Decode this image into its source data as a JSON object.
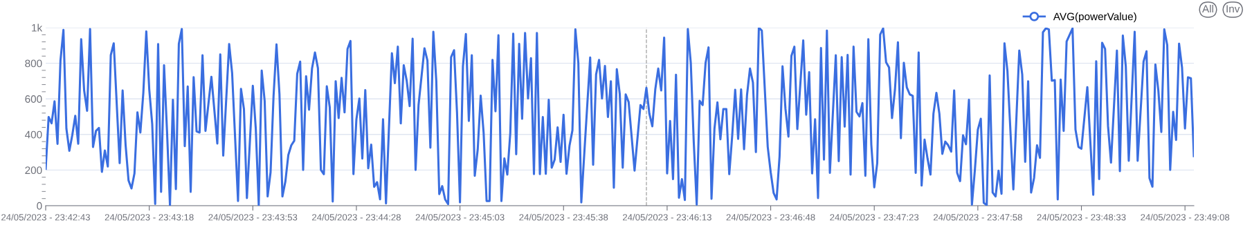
{
  "chart_data": {
    "type": "line",
    "x": [
      "2023-05-24T23:42:43",
      "2023-05-24T23:42:44",
      "2023-05-24T23:42:45",
      "2023-05-24T23:42:46",
      "2023-05-24T23:42:47",
      "2023-05-24T23:42:48",
      "2023-05-24T23:42:49",
      "2023-05-24T23:42:50",
      "2023-05-24T23:42:51",
      "2023-05-24T23:42:52",
      "2023-05-24T23:42:53",
      "2023-05-24T23:42:54",
      "2023-05-24T23:42:55",
      "2023-05-24T23:42:56",
      "2023-05-24T23:42:57",
      "2023-05-24T23:42:58",
      "2023-05-24T23:42:59",
      "2023-05-24T23:43:00",
      "2023-05-24T23:43:01",
      "2023-05-24T23:43:02",
      "2023-05-24T23:43:03",
      "2023-05-24T23:43:04",
      "2023-05-24T23:43:05",
      "2023-05-24T23:43:06",
      "2023-05-24T23:43:08",
      "2023-05-24T23:43:09",
      "2023-05-24T23:43:10",
      "2023-05-24T23:43:11",
      "2023-05-24T23:43:12",
      "2023-05-24T23:43:13",
      "2023-05-24T23:43:14",
      "2023-05-24T23:43:15",
      "2023-05-24T23:43:16",
      "2023-05-24T23:43:17",
      "2023-05-24T23:43:18",
      "2023-05-24T23:43:19",
      "2023-05-24T23:43:20",
      "2023-05-24T23:43:21",
      "2023-05-24T23:43:22",
      "2023-05-24T23:43:23",
      "2023-05-24T23:43:24",
      "2023-05-24T23:43:25",
      "2023-05-24T23:43:26",
      "2023-05-24T23:43:27",
      "2023-05-24T23:43:28",
      "2023-05-24T23:43:29",
      "2023-05-24T23:43:30",
      "2023-05-24T23:43:31",
      "2023-05-24T23:43:32",
      "2023-05-24T23:43:33",
      "2023-05-24T23:43:34",
      "2023-05-24T23:43:35",
      "2023-05-24T23:43:36",
      "2023-05-24T23:43:37",
      "2023-05-24T23:43:39",
      "2023-05-24T23:43:41",
      "2023-05-24T23:43:42",
      "2023-05-24T23:43:43",
      "2023-05-24T23:43:45",
      "2023-05-24T23:43:46",
      "2023-05-24T23:43:48",
      "2023-05-24T23:43:49",
      "2023-05-24T23:43:50",
      "2023-05-24T23:43:51",
      "2023-05-24T23:43:53",
      "2023-05-24T23:43:54",
      "2023-05-24T23:43:55",
      "2023-05-24T23:43:56",
      "2023-05-24T23:43:57",
      "2023-05-24T23:43:58",
      "2023-05-24T23:43:59",
      "2023-05-24T23:44:00",
      "2023-05-24T23:44:01",
      "2023-05-24T23:44:02",
      "2023-05-24T23:44:03",
      "2023-05-24T23:44:04",
      "2023-05-24T23:44:05",
      "2023-05-24T23:44:06",
      "2023-05-24T23:44:07",
      "2023-05-24T23:44:08",
      "2023-05-24T23:44:09",
      "2023-05-24T23:44:10",
      "2023-05-24T23:44:11",
      "2023-05-24T23:44:12",
      "2023-05-24T23:44:13",
      "2023-05-24T23:44:14",
      "2023-05-24T23:44:15",
      "2023-05-24T23:44:16",
      "2023-05-24T23:44:17",
      "2023-05-24T23:44:18",
      "2023-05-24T23:44:19",
      "2023-05-24T23:44:20",
      "2023-05-24T23:44:21",
      "2023-05-24T23:44:22",
      "2023-05-24T23:44:23",
      "2023-05-24T23:44:24",
      "2023-05-24T23:44:25",
      "2023-05-24T23:44:26",
      "2023-05-24T23:44:27",
      "2023-05-24T23:44:28",
      "2023-05-24T23:44:29",
      "2023-05-24T23:44:30",
      "2023-05-24T23:44:31",
      "2023-05-24T23:44:32",
      "2023-05-24T23:44:33",
      "2023-05-24T23:44:34",
      "2023-05-24T23:44:35",
      "2023-05-24T23:44:36",
      "2023-05-24T23:44:37",
      "2023-05-24T23:44:38",
      "2023-05-24T23:44:40",
      "2023-05-24T23:44:41",
      "2023-05-24T23:44:42",
      "2023-05-24T23:44:43",
      "2023-05-24T23:44:44",
      "2023-05-24T23:44:45",
      "2023-05-24T23:44:46",
      "2023-05-24T23:44:47",
      "2023-05-24T23:44:48",
      "2023-05-24T23:44:49",
      "2023-05-24T23:44:51",
      "2023-05-24T23:44:52",
      "2023-05-24T23:44:53",
      "2023-05-24T23:44:54",
      "2023-05-24T23:44:55",
      "2023-05-24T23:44:56",
      "2023-05-24T23:44:57",
      "2023-05-24T23:44:58",
      "2023-05-24T23:44:59",
      "2023-05-24T23:45:00",
      "2023-05-24T23:45:01",
      "2023-05-24T23:45:02",
      "2023-05-24T23:45:03",
      "2023-05-24T23:45:04",
      "2023-05-24T23:45:05",
      "2023-05-24T23:45:06",
      "2023-05-24T23:45:07",
      "2023-05-24T23:45:08",
      "2023-05-24T23:45:09",
      "2023-05-24T23:45:10",
      "2023-05-24T23:45:11",
      "2023-05-24T23:45:12",
      "2023-05-24T23:45:13",
      "2023-05-24T23:45:14",
      "2023-05-24T23:45:15",
      "2023-05-24T23:45:16",
      "2023-05-24T23:45:17",
      "2023-05-24T23:45:18",
      "2023-05-24T23:45:19",
      "2023-05-24T23:45:20",
      "2023-05-24T23:45:21",
      "2023-05-24T23:45:22",
      "2023-05-24T23:45:23",
      "2023-05-24T23:45:24",
      "2023-05-24T23:45:25",
      "2023-05-24T23:45:26",
      "2023-05-24T23:45:27",
      "2023-05-24T23:45:28",
      "2023-05-24T23:45:29",
      "2023-05-24T23:45:30",
      "2023-05-24T23:45:31",
      "2023-05-24T23:45:32",
      "2023-05-24T23:45:33",
      "2023-05-24T23:45:34",
      "2023-05-24T23:45:35",
      "2023-05-24T23:45:36",
      "2023-05-24T23:45:37",
      "2023-05-24T23:45:38",
      "2023-05-24T23:45:39",
      "2023-05-24T23:45:40",
      "2023-05-24T23:45:41",
      "2023-05-24T23:45:42",
      "2023-05-24T23:45:43",
      "2023-05-24T23:45:44",
      "2023-05-24T23:45:47",
      "2023-05-24T23:45:48",
      "2023-05-24T23:45:49",
      "2023-05-24T23:45:50",
      "2023-05-24T23:45:51",
      "2023-05-24T23:45:52",
      "2023-05-24T23:45:53",
      "2023-05-24T23:45:54",
      "2023-05-24T23:45:55",
      "2023-05-24T23:45:56",
      "2023-05-24T23:45:57",
      "2023-05-24T23:45:58",
      "2023-05-24T23:45:59",
      "2023-05-24T23:46:00",
      "2023-05-24T23:46:02",
      "2023-05-24T23:46:04",
      "2023-05-24T23:46:05",
      "2023-05-24T23:46:06",
      "2023-05-24T23:46:07",
      "2023-05-24T23:46:08",
      "2023-05-24T23:46:09",
      "2023-05-24T23:46:10",
      "2023-05-24T23:46:11",
      "2023-05-24T23:46:12",
      "2023-05-24T23:46:13",
      "2023-05-24T23:46:14",
      "2023-05-24T23:46:15",
      "2023-05-24T23:46:16",
      "2023-05-24T23:46:17",
      "2023-05-24T23:46:18",
      "2023-05-24T23:46:19",
      "2023-05-24T23:46:20",
      "2023-05-24T23:46:21",
      "2023-05-24T23:46:22",
      "2023-05-24T23:46:23",
      "2023-05-24T23:46:24",
      "2023-05-24T23:46:25",
      "2023-05-24T23:46:26",
      "2023-05-24T23:46:27",
      "2023-05-24T23:46:28",
      "2023-05-24T23:46:29",
      "2023-05-24T23:46:30",
      "2023-05-24T23:46:31",
      "2023-05-24T23:46:32",
      "2023-05-24T23:46:33",
      "2023-05-24T23:46:34",
      "2023-05-24T23:46:35",
      "2023-05-24T23:46:36",
      "2023-05-24T23:46:37",
      "2023-05-24T23:46:38",
      "2023-05-24T23:46:39",
      "2023-05-24T23:46:40",
      "2023-05-24T23:46:41",
      "2023-05-24T23:46:42",
      "2023-05-24T23:46:43",
      "2023-05-24T23:46:44",
      "2023-05-24T23:46:45",
      "2023-05-24T23:46:47",
      "2023-05-24T23:46:48",
      "2023-05-24T23:46:49",
      "2023-05-24T23:46:50",
      "2023-05-24T23:46:51",
      "2023-05-24T23:46:52",
      "2023-05-24T23:46:53",
      "2023-05-24T23:46:54",
      "2023-05-24T23:46:55",
      "2023-05-24T23:46:56",
      "2023-05-24T23:46:57",
      "2023-05-24T23:46:59",
      "2023-05-24T23:47:00",
      "2023-05-24T23:47:01",
      "2023-05-24T23:47:02",
      "2023-05-24T23:47:03",
      "2023-05-24T23:47:04",
      "2023-05-24T23:47:05",
      "2023-05-24T23:47:06",
      "2023-05-24T23:47:07",
      "2023-05-24T23:47:08",
      "2023-05-24T23:47:10",
      "2023-05-24T23:47:11",
      "2023-05-24T23:47:12",
      "2023-05-24T23:47:13",
      "2023-05-24T23:47:14",
      "2023-05-24T23:47:15",
      "2023-05-24T23:47:16",
      "2023-05-24T23:47:17",
      "2023-05-24T23:47:18",
      "2023-05-24T23:47:19",
      "2023-05-24T23:47:20",
      "2023-05-24T23:47:21",
      "2023-05-24T23:47:22",
      "2023-05-24T23:47:23",
      "2023-05-24T23:47:24",
      "2023-05-24T23:47:25",
      "2023-05-24T23:47:26",
      "2023-05-24T23:47:27",
      "2023-05-24T23:47:28",
      "2023-05-24T23:47:29",
      "2023-05-24T23:47:30",
      "2023-05-24T23:47:31",
      "2023-05-24T23:47:32",
      "2023-05-24T23:47:33",
      "2023-05-24T23:47:34",
      "2023-05-24T23:47:35",
      "2023-05-24T23:47:36",
      "2023-05-24T23:47:37",
      "2023-05-24T23:47:38",
      "2023-05-24T23:47:39",
      "2023-05-24T23:47:40",
      "2023-05-24T23:47:41",
      "2023-05-24T23:47:42",
      "2023-05-24T23:47:43",
      "2023-05-24T23:47:44",
      "2023-05-24T23:47:45",
      "2023-05-24T23:47:46",
      "2023-05-24T23:47:47",
      "2023-05-24T23:47:48",
      "2023-05-24T23:47:49",
      "2023-05-24T23:47:50",
      "2023-05-24T23:47:51",
      "2023-05-24T23:47:52",
      "2023-05-24T23:47:53",
      "2023-05-24T23:47:54",
      "2023-05-24T23:47:55",
      "2023-05-24T23:47:56",
      "2023-05-24T23:47:57",
      "2023-05-24T23:47:58",
      "2023-05-24T23:47:59",
      "2023-05-24T23:48:00",
      "2023-05-24T23:48:01",
      "2023-05-24T23:48:02",
      "2023-05-24T23:48:03",
      "2023-05-24T23:48:04",
      "2023-05-24T23:48:05",
      "2023-05-24T23:48:06",
      "2023-05-24T23:48:07",
      "2023-05-24T23:48:08",
      "2023-05-24T23:48:10",
      "2023-05-24T23:48:12",
      "2023-05-24T23:48:13",
      "2023-05-24T23:48:14",
      "2023-05-24T23:48:15",
      "2023-05-24T23:48:16",
      "2023-05-24T23:48:17",
      "2023-05-24T23:48:18",
      "2023-05-24T23:48:19",
      "2023-05-24T23:48:20",
      "2023-05-24T23:48:21",
      "2023-05-24T23:48:22",
      "2023-05-24T23:48:23",
      "2023-05-24T23:48:24",
      "2023-05-24T23:48:25",
      "2023-05-24T23:48:26",
      "2023-05-24T23:48:27",
      "2023-05-24T23:48:28",
      "2023-05-24T23:48:30",
      "2023-05-24T23:48:31",
      "2023-05-24T23:48:32",
      "2023-05-24T23:48:33",
      "2023-05-24T23:48:35",
      "2023-05-24T23:48:37",
      "2023-05-24T23:48:38",
      "2023-05-24T23:48:39",
      "2023-05-24T23:48:40",
      "2023-05-24T23:48:41",
      "2023-05-24T23:48:42",
      "2023-05-24T23:48:43",
      "2023-05-24T23:48:45",
      "2023-05-24T23:48:46",
      "2023-05-24T23:48:47",
      "2023-05-24T23:48:48",
      "2023-05-24T23:48:49",
      "2023-05-24T23:48:51",
      "2023-05-24T23:48:52",
      "2023-05-24T23:48:54",
      "2023-05-24T23:48:55",
      "2023-05-24T23:48:56",
      "2023-05-24T23:48:57",
      "2023-05-24T23:48:58",
      "2023-05-24T23:48:59",
      "2023-05-24T23:49:00",
      "2023-05-24T23:49:01",
      "2023-05-24T23:49:02",
      "2023-05-24T23:49:03",
      "2023-05-24T23:49:04",
      "2023-05-24T23:49:05",
      "2023-05-24T23:49:06",
      "2023-05-24T23:49:07",
      "2023-05-24T23:49:08",
      "2023-05-24T23:49:09",
      "2023-05-24T23:49:10",
      "2023-05-24T23:49:11"
    ],
    "series": [
      {
        "name": "AVG(powerValue)",
        "color": "#3a6ee0",
        "values": [
          207,
          498,
          463,
          586,
          347,
          815,
          987,
          433,
          308,
          397,
          505,
          348,
          935,
          647,
          533,
          992,
          330,
          420,
          437,
          190,
          310,
          220,
          845,
          912,
          239,
          647,
          343,
          142,
          97,
          181,
          524,
          411,
          634,
          979,
          653,
          459,
          10,
          908,
          78,
          789,
          420,
          3,
          595,
          93,
          909,
          992,
          334,
          669,
          78,
          722,
          417,
          411,
          845,
          420,
          724,
          349,
          850,
          281,
          908,
          746,
          26,
          656,
          543,
          43,
          673,
          433,
          3,
          759,
          589,
          52,
          188,
          615,
          906,
          627,
          52,
          136,
          285,
          339,
          365,
          741,
          809,
          201,
          727,
          539,
          770,
          860,
          772,
          201,
          177,
          670,
          552,
          23,
          699,
          492,
          718,
          524,
          880,
          925,
          177,
          485,
          602,
          265,
          649,
          210,
          343,
          106,
          132,
          36,
          485,
          13,
          856,
          688,
          893,
          462,
          789,
          702,
          559,
          938,
          201,
          565,
          884,
          815,
          326,
          977,
          699,
          65,
          110,
          35,
          9,
          834,
          873,
          524,
          19,
          783,
          964,
          476,
          845,
          168,
          317,
          618,
          408,
          26,
          26,
          819,
          530,
          957,
          26,
          265,
          175,
          408,
          966,
          289,
          909,
          488,
          970,
          602,
          828,
          177,
          970,
          177,
          498,
          179,
          595,
          213,
          259,
          440,
          246,
          511,
          179,
          336,
          423,
          990,
          802,
          19,
          832,
          230,
          737,
          819,
          602,
          785,
          498,
          699,
          101,
          766,
          627,
          213,
          625,
          582,
          197,
          565,
          543,
          662,
          517,
          446,
          653,
          770,
          647,
          944,
          181,
          476,
          149,
          735,
          45,
          149,
          32,
          992,
          802,
          358,
          6,
          589,
          565,
          802,
          889,
          39,
          433,
          580,
          373,
          543,
          543,
          177,
          395,
          651,
          375,
          653,
          317,
          621,
          770,
          692,
          301,
          1000,
          983,
          330,
          188,
          71,
          35,
          278,
          783,
          543,
          388,
          841,
          893,
          430,
          928,
          511,
          750,
          181,
          485,
          43,
          886,
          259,
          983,
          184,
          845,
          250,
          834,
          444,
          847,
          175,
          893,
          527,
          501,
          576,
          168,
          935,
          343,
          103,
          239,
          961,
          996,
          805,
          776,
          492,
          653,
          918,
          379,
          802,
          664,
          625,
          617,
          184,
          860,
          113,
          371,
          265,
          175,
          517,
          634,
          517,
          291,
          360,
          339,
          304,
          647,
          185,
          138,
          395,
          345,
          595,
          6,
          201,
          427,
          488,
          16,
          3,
          731,
          74,
          52,
          197,
          67,
          912,
          757,
          91,
          871,
          737,
          246,
          699,
          74,
          155,
          339,
          269,
          974,
          996,
          990,
          702,
          705,
          35,
          708,
          420,
          922,
          996,
          427,
          330,
          320,
          666,
          61,
          811,
          149,
          915,
          880,
          446,
          242,
          871,
          194,
          955,
          783,
          252,
          977,
          252,
          809,
          867,
          155,
          107,
          793,
          647,
          414,
          990,
          902,
          201,
          527,
          369,
          910,
          776,
          433,
          721,
          715,
          278
        ]
      }
    ],
    "xlim": [
      "2023-05-24T23:42:43",
      "2023-05-24T23:49:11"
    ],
    "xticks": [
      {
        "value": "2023-05-24T23:42:43",
        "label": "24/05/2023 - 23:42:43"
      },
      {
        "value": "2023-05-24T23:43:18",
        "label": "24/05/2023 - 23:43:18"
      },
      {
        "value": "2023-05-24T23:43:53",
        "label": "24/05/2023 - 23:43:53"
      },
      {
        "value": "2023-05-24T23:44:28",
        "label": "24/05/2023 - 23:44:28"
      },
      {
        "value": "2023-05-24T23:45:03",
        "label": "24/05/2023 - 23:45:03"
      },
      {
        "value": "2023-05-24T23:45:38",
        "label": "24/05/2023 - 23:45:38"
      },
      {
        "value": "2023-05-24T23:46:13",
        "label": "24/05/2023 - 23:46:13"
      },
      {
        "value": "2023-05-24T23:46:48",
        "label": "24/05/2023 - 23:46:48"
      },
      {
        "value": "2023-05-24T23:47:23",
        "label": "24/05/2023 - 23:47:23"
      },
      {
        "value": "2023-05-24T23:47:58",
        "label": "24/05/2023 - 23:47:58"
      },
      {
        "value": "2023-05-24T23:48:33",
        "label": "24/05/2023 - 23:48:33"
      },
      {
        "value": "2023-05-24T23:49:08",
        "label": "24/05/2023 - 23:49:08"
      }
    ],
    "ylim": [
      0,
      1000
    ],
    "yticks": [
      0,
      200,
      400,
      600,
      800,
      {
        "value": 1000,
        "label": "1k"
      }
    ],
    "grid": "y",
    "legend": "top right",
    "marker": "none",
    "line_style": "solid",
    "ref_lines": [
      {
        "axis": "x",
        "value": "2023-05-24T23:46:06",
        "label": null,
        "color": "#aaaaaa",
        "line_style": "dashed"
      }
    ],
    "annotations": [
      "All",
      "Inv"
    ]
  }
}
